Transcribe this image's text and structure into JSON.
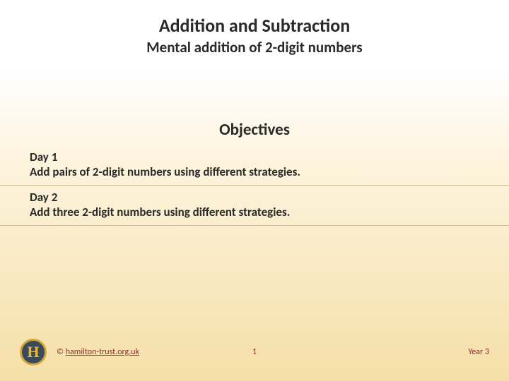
{
  "title": "Addition and Subtraction",
  "subtitle": "Mental addition of 2-digit numbers",
  "objectives_heading": "Objectives",
  "days": [
    {
      "label": "Day 1",
      "text": "Add pairs of 2-digit numbers using different strategies."
    },
    {
      "label": "Day 2",
      "text": "Add three 2-digit numbers using different strategies."
    }
  ],
  "footer": {
    "logo_letter": "H",
    "copyright_symbol": "©",
    "link_text": "hamilton-trust.org.uk",
    "page_number": "1",
    "year": "Year 3"
  },
  "colors": {
    "text": "#2a2a2a",
    "footer_text": "#8a3030",
    "divider": "#c8b98a",
    "bg_top": "#ffffff",
    "bg_bottom": "#f5dfa8",
    "logo_bg": "#3a4a5a",
    "logo_ring": "#d4a838",
    "logo_letter_color": "#e8b840"
  },
  "fonts": {
    "title_size": 26,
    "subtitle_size": 21,
    "objectives_size": 23,
    "body_size": 17,
    "footer_size": 12
  }
}
